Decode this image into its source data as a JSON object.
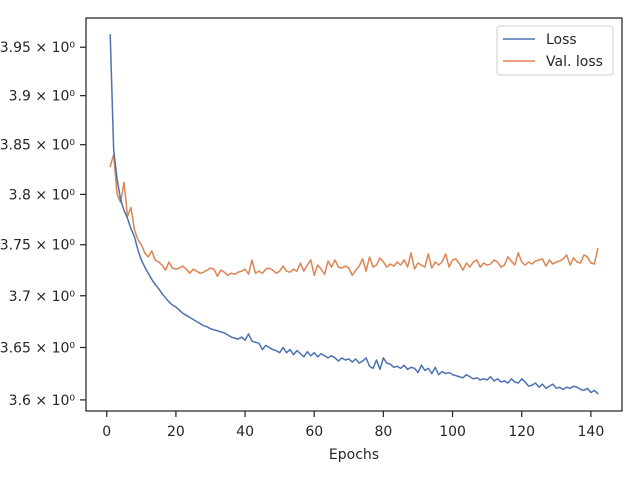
{
  "chart_data": {
    "type": "line",
    "xlabel": "Epochs",
    "ylabel": "",
    "yscale": "log",
    "xlim": [
      -6,
      149
    ],
    "ylim": [
      3.5895,
      3.9805
    ],
    "xticks": [
      0,
      20,
      40,
      60,
      80,
      100,
      120,
      140
    ],
    "xtick_labels": [
      "0",
      "20",
      "40",
      "60",
      "80",
      "100",
      "120",
      "140"
    ],
    "yticks": [
      3.6,
      3.65,
      3.7,
      3.75,
      3.8,
      3.85,
      3.9,
      3.95
    ],
    "ytick_labels": [
      "3.6 × 10⁰",
      "3.65 × 10⁰",
      "3.7 × 10⁰",
      "3.75 × 10⁰",
      "3.8 × 10⁰",
      "3.85 × 10⁰",
      "3.9 × 10⁰",
      "3.95 × 10⁰"
    ],
    "grid": false,
    "legend_position": "top-right",
    "series": [
      {
        "name": "Loss",
        "color": "#4c72b0",
        "x": [
          1,
          2,
          3,
          4,
          5,
          6,
          7,
          8,
          9,
          10,
          11,
          12,
          13,
          14,
          15,
          16,
          17,
          18,
          19,
          20,
          21,
          22,
          23,
          24,
          25,
          26,
          27,
          28,
          29,
          30,
          31,
          32,
          33,
          34,
          35,
          36,
          37,
          38,
          39,
          40,
          41,
          42,
          43,
          44,
          45,
          46,
          47,
          48,
          49,
          50,
          51,
          52,
          53,
          54,
          55,
          56,
          57,
          58,
          59,
          60,
          61,
          62,
          63,
          64,
          65,
          66,
          67,
          68,
          69,
          70,
          71,
          72,
          73,
          74,
          75,
          76,
          77,
          78,
          79,
          80,
          81,
          82,
          83,
          84,
          85,
          86,
          87,
          88,
          89,
          90,
          91,
          92,
          93,
          94,
          95,
          96,
          97,
          98,
          99,
          100,
          101,
          102,
          103,
          104,
          105,
          106,
          107,
          108,
          109,
          110,
          111,
          112,
          113,
          114,
          115,
          116,
          117,
          118,
          119,
          120,
          121,
          122,
          123,
          124,
          125,
          126,
          127,
          128,
          129,
          130,
          131,
          132,
          133,
          134,
          135,
          136,
          137,
          138,
          139,
          140,
          141,
          142
        ],
        "values": [
          3.963,
          3.845,
          3.815,
          3.795,
          3.784,
          3.776,
          3.766,
          3.758,
          3.745,
          3.735,
          3.728,
          3.722,
          3.716,
          3.711,
          3.707,
          3.702,
          3.698,
          3.694,
          3.691,
          3.689,
          3.686,
          3.683,
          3.681,
          3.679,
          3.677,
          3.675,
          3.673,
          3.671,
          3.67,
          3.668,
          3.667,
          3.666,
          3.665,
          3.664,
          3.662,
          3.66,
          3.659,
          3.658,
          3.66,
          3.657,
          3.663,
          3.656,
          3.655,
          3.654,
          3.648,
          3.652,
          3.65,
          3.648,
          3.647,
          3.645,
          3.65,
          3.645,
          3.648,
          3.643,
          3.647,
          3.644,
          3.641,
          3.646,
          3.642,
          3.645,
          3.641,
          3.644,
          3.642,
          3.64,
          3.642,
          3.64,
          3.637,
          3.64,
          3.638,
          3.639,
          3.636,
          3.639,
          3.635,
          3.637,
          3.64,
          3.632,
          3.63,
          3.638,
          3.629,
          3.64,
          3.635,
          3.634,
          3.631,
          3.632,
          3.63,
          3.633,
          3.629,
          3.631,
          3.63,
          3.626,
          3.633,
          3.628,
          3.63,
          3.625,
          3.631,
          3.624,
          3.627,
          3.625,
          3.626,
          3.624,
          3.623,
          3.622,
          3.621,
          3.624,
          3.622,
          3.62,
          3.621,
          3.619,
          3.62,
          3.619,
          3.622,
          3.618,
          3.62,
          3.617,
          3.618,
          3.616,
          3.62,
          3.617,
          3.616,
          3.62,
          3.617,
          3.613,
          3.614,
          3.616,
          3.612,
          3.615,
          3.611,
          3.613,
          3.615,
          3.611,
          3.612,
          3.61,
          3.612,
          3.611,
          3.613,
          3.612,
          3.61,
          3.609,
          3.611,
          3.607,
          3.609,
          3.606
        ]
      },
      {
        "name": "Val. loss",
        "color": "#dd8452",
        "x": [
          1,
          2,
          3,
          4,
          5,
          6,
          7,
          8,
          9,
          10,
          11,
          12,
          13,
          14,
          15,
          16,
          17,
          18,
          19,
          20,
          21,
          22,
          23,
          24,
          25,
          26,
          27,
          28,
          29,
          30,
          31,
          32,
          33,
          34,
          35,
          36,
          37,
          38,
          39,
          40,
          41,
          42,
          43,
          44,
          45,
          46,
          47,
          48,
          49,
          50,
          51,
          52,
          53,
          54,
          55,
          56,
          57,
          58,
          59,
          60,
          61,
          62,
          63,
          64,
          65,
          66,
          67,
          68,
          69,
          70,
          71,
          72,
          73,
          74,
          75,
          76,
          77,
          78,
          79,
          80,
          81,
          82,
          83,
          84,
          85,
          86,
          87,
          88,
          89,
          90,
          91,
          92,
          93,
          94,
          95,
          96,
          97,
          98,
          99,
          100,
          101,
          102,
          103,
          104,
          105,
          106,
          107,
          108,
          109,
          110,
          111,
          112,
          113,
          114,
          115,
          116,
          117,
          118,
          119,
          120,
          121,
          122,
          123,
          124,
          125,
          126,
          127,
          128,
          129,
          130,
          131,
          132,
          133,
          134,
          135,
          136,
          137,
          138,
          139,
          140,
          141,
          142
        ],
        "values": [
          3.828,
          3.84,
          3.8,
          3.792,
          3.812,
          3.778,
          3.787,
          3.765,
          3.755,
          3.75,
          3.742,
          3.738,
          3.744,
          3.735,
          3.733,
          3.73,
          3.725,
          3.733,
          3.727,
          3.726,
          3.727,
          3.729,
          3.726,
          3.722,
          3.726,
          3.724,
          3.722,
          3.723,
          3.725,
          3.727,
          3.726,
          3.719,
          3.725,
          3.723,
          3.72,
          3.722,
          3.721,
          3.723,
          3.724,
          3.726,
          3.721,
          3.735,
          3.722,
          3.724,
          3.722,
          3.726,
          3.727,
          3.725,
          3.722,
          3.724,
          3.729,
          3.724,
          3.723,
          3.726,
          3.724,
          3.732,
          3.724,
          3.73,
          3.735,
          3.72,
          3.73,
          3.726,
          3.721,
          3.734,
          3.728,
          3.735,
          3.728,
          3.727,
          3.729,
          3.727,
          3.72,
          3.725,
          3.729,
          3.736,
          3.724,
          3.738,
          3.728,
          3.73,
          3.737,
          3.733,
          3.728,
          3.731,
          3.729,
          3.733,
          3.73,
          3.735,
          3.728,
          3.742,
          3.726,
          3.732,
          3.73,
          3.728,
          3.741,
          3.727,
          3.733,
          3.73,
          3.733,
          3.741,
          3.728,
          3.735,
          3.736,
          3.731,
          3.725,
          3.732,
          3.728,
          3.733,
          3.735,
          3.728,
          3.732,
          3.73,
          3.731,
          3.735,
          3.733,
          3.728,
          3.73,
          3.738,
          3.734,
          3.73,
          3.742,
          3.733,
          3.73,
          3.733,
          3.731,
          3.734,
          3.735,
          3.736,
          3.729,
          3.735,
          3.731,
          3.733,
          3.734,
          3.736,
          3.74,
          3.73,
          3.737,
          3.733,
          3.732,
          3.74,
          3.738,
          3.732,
          3.731,
          3.746
        ]
      }
    ]
  }
}
